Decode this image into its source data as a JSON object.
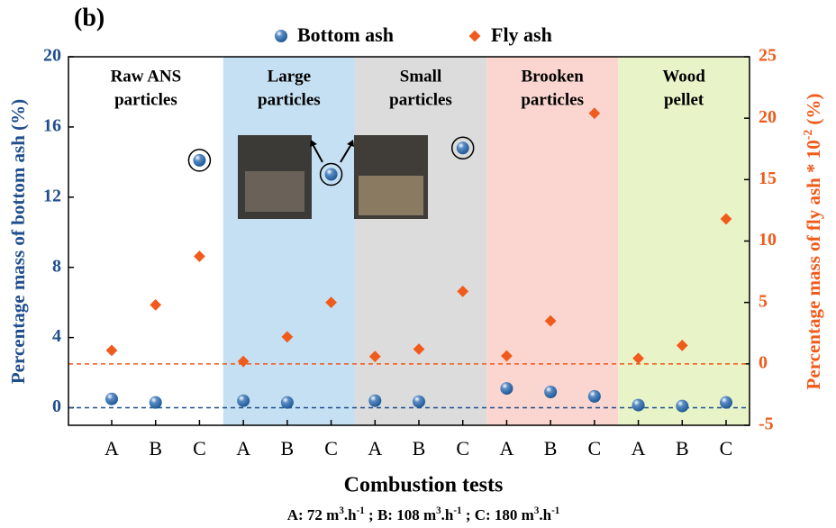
{
  "chart_data": {
    "type": "scatter",
    "panel_label": "(b)",
    "xlabel": "Combustion tests",
    "ylabel": "Percentage mass of bottom ash (%)",
    "y2label": [
      "Percentage mass of fly ash * 10",
      "-2",
      " (%)"
    ],
    "note": [
      "A:  72 m",
      "3",
      ".h",
      "-1",
      "  ;  B: 108 m",
      "3",
      ".h",
      "-1",
      "  ;  C: 180 m",
      "3",
      ".h",
      "-1"
    ],
    "categories": [
      "A",
      "B",
      "C",
      "A",
      "B",
      "C",
      "A",
      "B",
      "C",
      "A",
      "B",
      "C",
      "A",
      "B",
      "C"
    ],
    "regions": [
      {
        "label": [
          "Raw ANS",
          "particles"
        ],
        "color": "#ffffff"
      },
      {
        "label": [
          "Large",
          "particles"
        ],
        "color": "#c5e0f2"
      },
      {
        "label": [
          "Small",
          "particles"
        ],
        "color": "#dcdcdc"
      },
      {
        "label": [
          "Brooken",
          "particles"
        ],
        "color": "#fbd6d0"
      },
      {
        "label": [
          "Wood",
          "pellet"
        ],
        "color": "#e9f3c8"
      }
    ],
    "series": [
      {
        "name": "Bottom ash",
        "color": "#1f5a96",
        "axis": "y",
        "values": [
          0.5,
          0.3,
          14.1,
          0.4,
          0.3,
          13.3,
          0.4,
          0.35,
          14.8,
          1.1,
          0.9,
          0.65,
          0.15,
          0.1,
          0.3
        ],
        "highlight": [
          2,
          5,
          8
        ]
      },
      {
        "name": "Fly ash",
        "color": "#f05a1a",
        "axis": "y2",
        "values": [
          1.1,
          4.8,
          8.75,
          0.2,
          2.2,
          5.0,
          0.6,
          1.2,
          5.9,
          0.65,
          3.5,
          20.4,
          0.45,
          1.5,
          11.8
        ]
      }
    ],
    "hlines": [
      {
        "value": 0,
        "axis": "y",
        "color": "#1f4e8c"
      },
      {
        "value": 0,
        "axis": "y2",
        "color": "#f05a1a"
      }
    ],
    "ylim": [
      -1,
      20
    ],
    "yticks": [
      0,
      4,
      8,
      12,
      16,
      20
    ],
    "y2lim": [
      -5,
      25
    ],
    "y2ticks": [
      -5,
      0,
      5,
      10,
      15,
      20,
      25
    ]
  }
}
